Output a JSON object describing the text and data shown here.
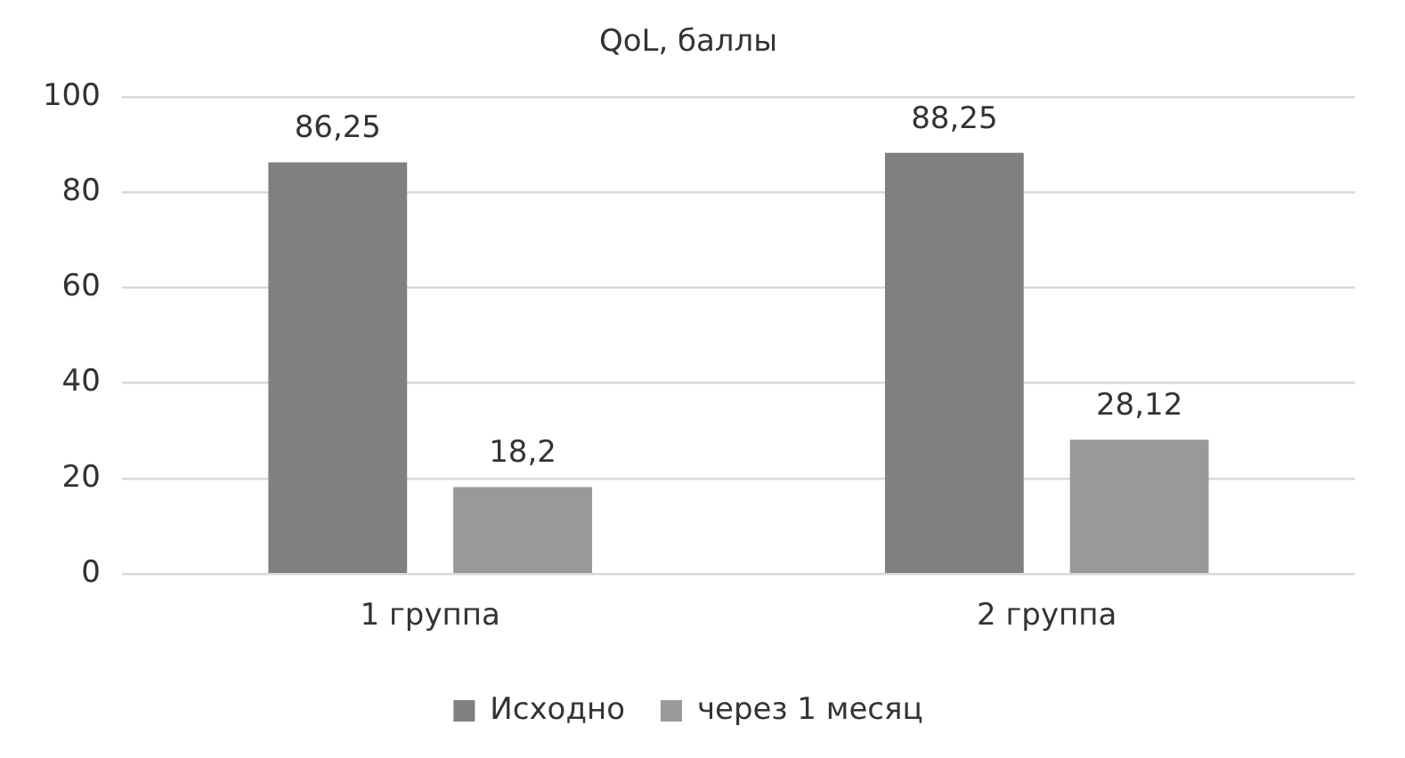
{
  "chart_data": {
    "type": "bar",
    "title": "QoL, баллы",
    "categories": [
      "1 группа",
      "2 группа"
    ],
    "series": [
      {
        "name": "Исходно",
        "color": "#808080",
        "values": [
          86.25,
          88.25
        ],
        "value_labels": [
          "86,25",
          "88,25"
        ]
      },
      {
        "name": "через 1 месяц",
        "color": "#999999",
        "values": [
          18.2,
          28.12
        ],
        "value_labels": [
          "18,2",
          "28,12"
        ]
      }
    ],
    "ylim": [
      0,
      100
    ],
    "yticks": [
      0,
      20,
      40,
      60,
      80,
      100
    ],
    "grid": "y",
    "legend": "bottom"
  }
}
